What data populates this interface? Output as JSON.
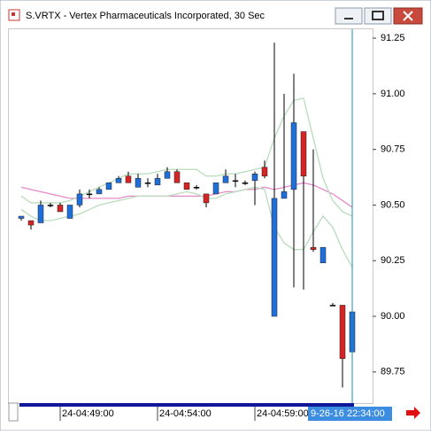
{
  "chart_data": {
    "type": "candlestick",
    "title": "S.VRTX - Vertex Pharmaceuticals Incorporated, 30 Sec",
    "up_color": "#1e6fd9",
    "down_color": "#d42424",
    "open": [
      90.44,
      90.43,
      90.42,
      90.5,
      90.5,
      90.44,
      90.5,
      90.55,
      90.55,
      90.57,
      90.6,
      90.63,
      90.58,
      90.6,
      90.59,
      90.62,
      90.65,
      90.6,
      90.58,
      90.55,
      90.55,
      90.6,
      90.61,
      90.6,
      90.61,
      90.67,
      90.0,
      90.53,
      90.57,
      90.83,
      90.31,
      90.24,
      90.05,
      90.05,
      89.84
    ],
    "high": [
      90.45,
      90.43,
      90.52,
      90.51,
      90.51,
      90.5,
      90.57,
      90.57,
      90.58,
      90.6,
      90.63,
      90.65,
      90.64,
      90.62,
      90.64,
      90.67,
      90.66,
      90.6,
      90.59,
      90.55,
      90.6,
      90.66,
      90.64,
      90.61,
      90.65,
      90.7,
      91.23,
      91.0,
      91.09,
      90.83,
      90.75,
      90.31,
      90.06,
      90.05,
      90.02
    ],
    "low": [
      90.43,
      90.39,
      90.42,
      90.49,
      90.47,
      90.44,
      90.49,
      90.53,
      90.55,
      90.57,
      90.6,
      90.6,
      90.58,
      90.58,
      90.59,
      90.62,
      90.6,
      90.57,
      90.57,
      90.49,
      90.55,
      90.6,
      90.58,
      90.59,
      90.5,
      90.62,
      90.0,
      90.53,
      90.13,
      90.12,
      90.29,
      90.24,
      90.05,
      89.68,
      89.84
    ],
    "close": [
      90.45,
      90.41,
      90.5,
      90.5,
      90.47,
      90.5,
      90.55,
      90.55,
      90.57,
      90.6,
      90.62,
      90.6,
      90.62,
      90.6,
      90.62,
      90.65,
      90.6,
      90.57,
      90.58,
      90.51,
      90.6,
      90.63,
      90.61,
      90.6,
      90.64,
      90.63,
      90.53,
      90.56,
      90.87,
      90.63,
      90.3,
      90.31,
      90.05,
      89.81,
      90.02
    ],
    "overlays": [
      {
        "color": "#e58ac9",
        "values": [
          90.58,
          90.57,
          90.56,
          90.55,
          90.54,
          90.53,
          90.53,
          90.53,
          90.53,
          90.53,
          90.53,
          90.54,
          90.54,
          90.54,
          90.54,
          90.54,
          90.54,
          90.54,
          90.54,
          90.54,
          90.55,
          90.56,
          90.56,
          90.57,
          90.57,
          90.58,
          90.57,
          90.58,
          90.59,
          90.6,
          90.59,
          90.57,
          90.55,
          90.52,
          90.49
        ]
      },
      {
        "color": "#b9dcbc",
        "values": [
          90.54,
          90.51,
          90.51,
          90.51,
          90.51,
          90.52,
          90.54,
          90.56,
          90.58,
          90.6,
          90.62,
          90.64,
          90.64,
          90.64,
          90.65,
          90.66,
          90.66,
          90.66,
          90.66,
          90.63,
          90.63,
          90.64,
          90.64,
          90.65,
          90.66,
          90.67,
          90.8,
          90.9,
          90.97,
          90.98,
          90.8,
          90.62,
          90.52,
          90.47,
          90.45
        ]
      },
      {
        "color": "#b9dcbc",
        "values": [
          90.48,
          90.45,
          90.43,
          90.43,
          90.44,
          90.45,
          90.46,
          90.48,
          90.5,
          90.51,
          90.52,
          90.53,
          90.54,
          90.54,
          90.54,
          90.54,
          90.55,
          90.56,
          90.55,
          90.53,
          90.53,
          90.55,
          90.56,
          90.57,
          90.58,
          90.57,
          90.4,
          90.33,
          90.3,
          90.3,
          90.38,
          90.45,
          90.4,
          90.3,
          90.22
        ]
      }
    ],
    "ylim": [
      89.61,
      91.29
    ],
    "yticks": [
      {
        "value": 91.25,
        "label": "91.25"
      },
      {
        "value": 91.0,
        "label": "91.00"
      },
      {
        "value": 90.75,
        "label": "90.75"
      },
      {
        "value": 90.5,
        "label": "90.50"
      },
      {
        "value": 90.25,
        "label": "90.25"
      },
      {
        "value": 90.0,
        "label": "90.00"
      },
      {
        "value": 89.75,
        "label": "89.75"
      }
    ],
    "xticks": [
      {
        "value": 4,
        "label": "24-04:49:00"
      },
      {
        "value": 14,
        "label": "24-04:54:00"
      },
      {
        "value": 24,
        "label": "24-04:59:00"
      }
    ],
    "cursor": {
      "value": 34,
      "label": "9-26-16 22:34:00"
    }
  }
}
